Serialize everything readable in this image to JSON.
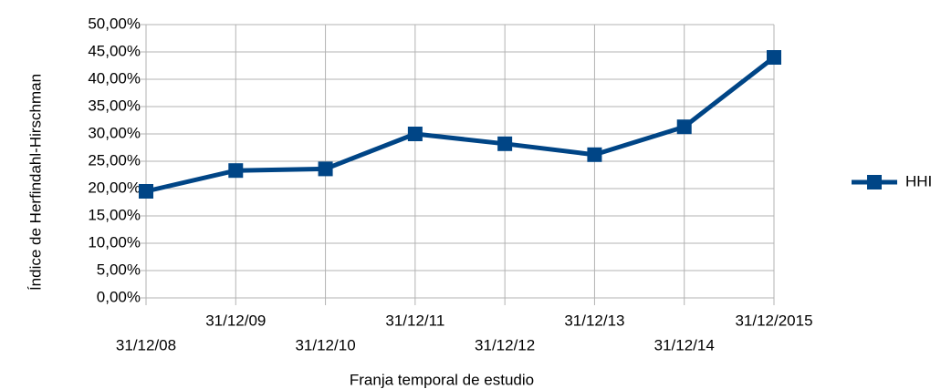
{
  "chart_data": {
    "type": "line",
    "x_label": "Franja temporal de estudio",
    "y_label": "Índice de Herfindahl-Hirschman",
    "categories": [
      "31/12/08",
      "31/12/09",
      "31/12/10",
      "31/12/11",
      "31/12/12",
      "31/12/13",
      "31/12/14",
      "31/12/2015"
    ],
    "series": [
      {
        "name": "HHI",
        "color": "#004586",
        "values": [
          19.5,
          23.3,
          23.6,
          30.0,
          28.2,
          26.2,
          31.3,
          44.0
        ]
      }
    ],
    "ylim": [
      0,
      50
    ],
    "yticks": [
      {
        "value": 0,
        "label": "0,00%"
      },
      {
        "value": 5,
        "label": "5,00%"
      },
      {
        "value": 10,
        "label": "10,00%"
      },
      {
        "value": 15,
        "label": "15,00%"
      },
      {
        "value": 20,
        "label": "20,00%"
      },
      {
        "value": 25,
        "label": "25,00%"
      },
      {
        "value": 30,
        "label": "30,00%"
      },
      {
        "value": 35,
        "label": "35,00%"
      },
      {
        "value": 40,
        "label": "40,00%"
      },
      {
        "value": 45,
        "label": "45,00%"
      },
      {
        "value": 50,
        "label": "50,00%"
      }
    ],
    "grid": true,
    "legend": "right"
  }
}
